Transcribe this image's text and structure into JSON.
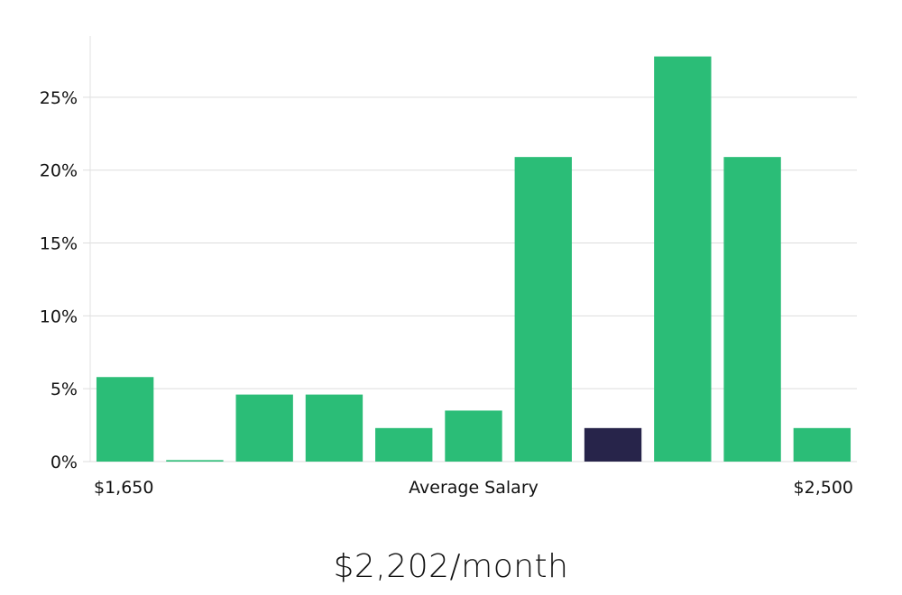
{
  "chart_data": {
    "type": "bar",
    "xlabel": "Average Salary",
    "x_range_labels": [
      "$1,650",
      "$2,500"
    ],
    "ylim": [
      0,
      29.2
    ],
    "yticks": [
      0,
      5,
      10,
      15,
      20,
      25
    ],
    "ytick_labels": [
      "0%",
      "5%",
      "10%",
      "15%",
      "20%",
      "25%"
    ],
    "values": [
      5.8,
      0.1,
      4.6,
      4.6,
      2.3,
      3.5,
      20.9,
      2.3,
      27.8,
      20.9,
      2.3
    ],
    "highlight_index": 7,
    "colors": {
      "bar": "#2bbd77",
      "highlight": "#27244a",
      "grid": "#dddddd",
      "axis": "#e5e5e5"
    },
    "grid": true
  },
  "summary": {
    "headline": "$2,202/month"
  }
}
